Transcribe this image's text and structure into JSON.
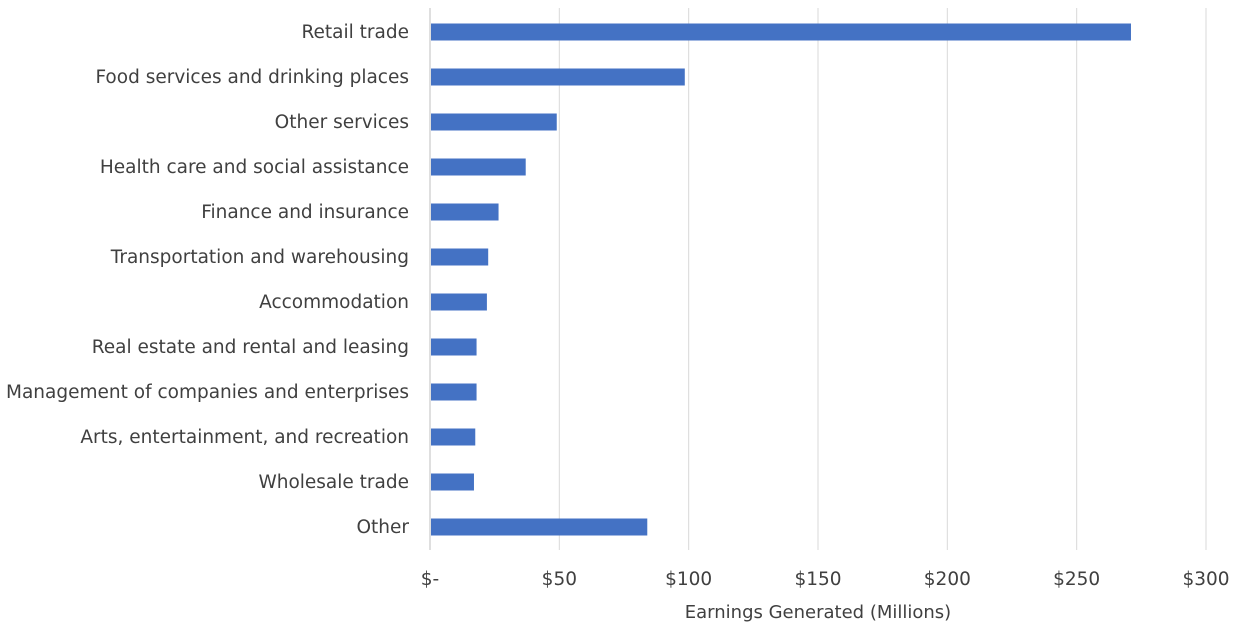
{
  "chart_data": {
    "type": "bar",
    "orientation": "horizontal",
    "categories": [
      "Retail trade",
      "Food services and drinking places",
      "Other services",
      "Health care and social assistance",
      "Finance and insurance",
      "Transportation and warehousing",
      "Accommodation",
      "Real estate and rental and leasing",
      "Management of companies and enterprises",
      "Arts, entertainment, and recreation",
      "Wholesale trade",
      "Other"
    ],
    "values": [
      271,
      98.5,
      49,
      37,
      26.5,
      22.5,
      22,
      18,
      18,
      17.5,
      17,
      84
    ],
    "xlabel": "Earnings Generated (Millions)",
    "ylabel": "",
    "xlim": [
      0,
      300
    ],
    "xticks": [
      0,
      50,
      100,
      150,
      200,
      250,
      300
    ],
    "xtick_labels": [
      "$-",
      "$50",
      "$100",
      "$150",
      "$200",
      "$250",
      "$300"
    ],
    "grid": "vertical",
    "legend": "none",
    "bar_color": "#4472C4",
    "grid_color": "#D9D9D9",
    "axis_color": "#BFBFBF",
    "text_color": "#404040"
  }
}
